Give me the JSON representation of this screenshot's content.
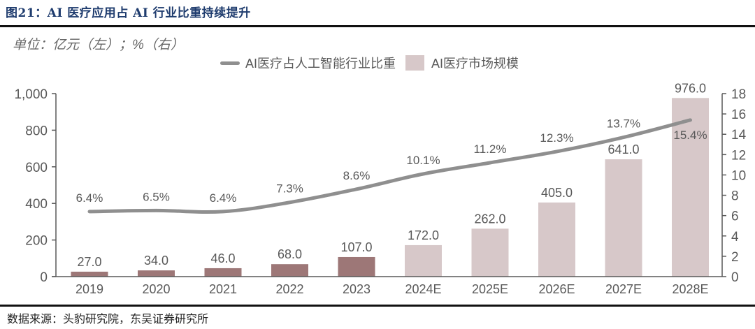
{
  "figure": {
    "title": "图21：AI 医疗应用占 AI 行业比重持续提升",
    "unit_note": "单位：亿元（左）；%（右）",
    "source": "数据来源：头豹研究院，东吴证券研究所"
  },
  "colors": {
    "bar_actual": "#9d7777",
    "bar_forecast": "#d7c8c9",
    "line": "#8f8f8f",
    "axis": "#595959",
    "title": "#1f3c6e"
  },
  "chart_data": {
    "type": "bar+line",
    "title": "AI 医疗应用占 AI 行业比重持续提升",
    "categories": [
      "2019",
      "2020",
      "2021",
      "2022",
      "2023",
      "2024E",
      "2025E",
      "2026E",
      "2027E",
      "2028E"
    ],
    "series": [
      {
        "name": "AI医疗市场规模",
        "type": "bar",
        "axis": "left",
        "values": [
          27.0,
          34.0,
          46.0,
          68.0,
          107.0,
          172.0,
          262.0,
          405.0,
          641.0,
          976.0
        ],
        "labels": [
          "27.0",
          "34.0",
          "46.0",
          "68.0",
          "107.0",
          "172.0",
          "262.0",
          "405.0",
          "641.0",
          "976.0"
        ],
        "forecast_from_index": 5
      },
      {
        "name": "AI医疗占人工智能行业比重",
        "type": "line",
        "axis": "right",
        "values": [
          6.4,
          6.5,
          6.4,
          7.3,
          8.6,
          10.1,
          11.2,
          12.3,
          13.7,
          15.4
        ],
        "labels": [
          "6.4%",
          "6.5%",
          "6.4%",
          "7.3%",
          "8.6%",
          "10.1%",
          "11.2%",
          "12.3%",
          "13.7%",
          "15.4%"
        ]
      }
    ],
    "left_axis": {
      "label": "亿元",
      "range": [
        0,
        1000
      ],
      "ticks": [
        0,
        200,
        400,
        600,
        800,
        1000
      ],
      "tick_labels": [
        "0",
        "200",
        "400",
        "600",
        "800",
        "1,000"
      ]
    },
    "right_axis": {
      "label": "%",
      "range": [
        0,
        18
      ],
      "ticks": [
        0,
        2,
        4,
        6,
        8,
        10,
        12,
        14,
        16,
        18
      ],
      "tick_labels": [
        "0",
        "2",
        "4",
        "6",
        "8",
        "10",
        "12",
        "14",
        "16",
        "18"
      ]
    },
    "legend": {
      "position": "top-center",
      "entries": [
        "AI医疗占人工智能行业比重",
        "AI医疗市场规模"
      ]
    },
    "grid": false
  }
}
